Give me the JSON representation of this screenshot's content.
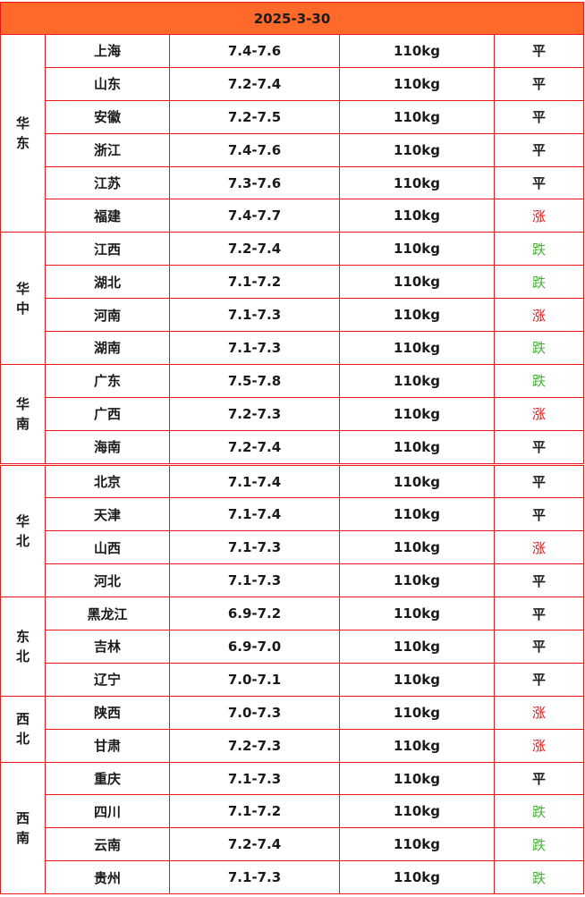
{
  "date": "2025-3-30",
  "colors": {
    "header_bg": "#ff6a2a",
    "border": "#f01414",
    "up": "#ee1111",
    "down": "#44b033",
    "flat": "#1a1a1a"
  },
  "regions": [
    {
      "name": "华东",
      "rows": [
        {
          "province": "上海",
          "price": "7.4-7.6",
          "weight": "110kg",
          "trend": "平"
        },
        {
          "province": "山东",
          "price": "7.2-7.4",
          "weight": "110kg",
          "trend": "平"
        },
        {
          "province": "安徽",
          "price": "7.2-7.5",
          "weight": "110kg",
          "trend": "平"
        },
        {
          "province": "浙江",
          "price": "7.4-7.6",
          "weight": "110kg",
          "trend": "平"
        },
        {
          "province": "江苏",
          "price": "7.3-7.6",
          "weight": "110kg",
          "trend": "平"
        },
        {
          "province": "福建",
          "price": "7.4-7.7",
          "weight": "110kg",
          "trend": "涨"
        }
      ]
    },
    {
      "name": "华中",
      "rows": [
        {
          "province": "江西",
          "price": "7.2-7.4",
          "weight": "110kg",
          "trend": "跌"
        },
        {
          "province": "湖北",
          "price": "7.1-7.2",
          "weight": "110kg",
          "trend": "跌"
        },
        {
          "province": "河南",
          "price": "7.1-7.3",
          "weight": "110kg",
          "trend": "涨"
        },
        {
          "province": "湖南",
          "price": "7.1-7.3",
          "weight": "110kg",
          "trend": "跌"
        }
      ]
    },
    {
      "name": "华南",
      "rows": [
        {
          "province": "广东",
          "price": "7.5-7.8",
          "weight": "110kg",
          "trend": "跌"
        },
        {
          "province": "广西",
          "price": "7.2-7.3",
          "weight": "110kg",
          "trend": "涨"
        },
        {
          "province": "海南",
          "price": "7.2-7.4",
          "weight": "110kg",
          "trend": "平"
        }
      ]
    },
    {
      "name": "华北",
      "rows": [
        {
          "province": "北京",
          "price": "7.1-7.4",
          "weight": "110kg",
          "trend": "平"
        },
        {
          "province": "天津",
          "price": "7.1-7.4",
          "weight": "110kg",
          "trend": "平"
        },
        {
          "province": "山西",
          "price": "7.1-7.3",
          "weight": "110kg",
          "trend": "涨"
        },
        {
          "province": "河北",
          "price": "7.1-7.3",
          "weight": "110kg",
          "trend": "平"
        }
      ]
    },
    {
      "name": "东北",
      "rows": [
        {
          "province": "黑龙江",
          "price": "6.9-7.2",
          "weight": "110kg",
          "trend": "平"
        },
        {
          "province": "吉林",
          "price": "6.9-7.0",
          "weight": "110kg",
          "trend": "平"
        },
        {
          "province": "辽宁",
          "price": "7.0-7.1",
          "weight": "110kg",
          "trend": "平"
        }
      ]
    },
    {
      "name": "西北",
      "rows": [
        {
          "province": "陕西",
          "price": "7.0-7.3",
          "weight": "110kg",
          "trend": "涨"
        },
        {
          "province": "甘肃",
          "price": "7.2-7.3",
          "weight": "110kg",
          "trend": "涨"
        }
      ]
    },
    {
      "name": "西南",
      "rows": [
        {
          "province": "重庆",
          "price": "7.1-7.3",
          "weight": "110kg",
          "trend": "平"
        },
        {
          "province": "四川",
          "price": "7.1-7.2",
          "weight": "110kg",
          "trend": "跌"
        },
        {
          "province": "云南",
          "price": "7.2-7.4",
          "weight": "110kg",
          "trend": "跌"
        },
        {
          "province": "贵州",
          "price": "7.1-7.3",
          "weight": "110kg",
          "trend": "跌"
        }
      ]
    }
  ]
}
